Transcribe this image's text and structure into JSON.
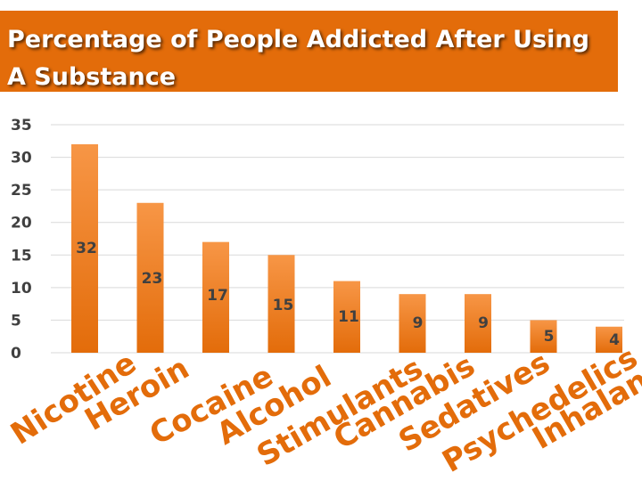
{
  "header": {
    "title": "Percentage of People Addicted After Using A Substance"
  },
  "colors": {
    "accent": "#e36c0a",
    "bar_top": "#f79646",
    "bar_bottom": "#e36c0a",
    "grid": "#d9d9d9",
    "text": "#404040"
  },
  "chart_data": {
    "type": "bar",
    "title": "Percentage of People Addicted After Using A Substance",
    "categories": [
      "Nicotine",
      "Heroin",
      "Cocaine",
      "Alcohol",
      "Stimulants",
      "Cannabis",
      "Sedatives",
      "Psychedelics",
      "Inhalants"
    ],
    "values": [
      32,
      23,
      17,
      15,
      11,
      9,
      9,
      5,
      4
    ],
    "data_labels": [
      "32",
      "23",
      "17",
      "15",
      "11",
      "9",
      "9",
      "5",
      "4"
    ],
    "yticks": [
      "0",
      "5",
      "10",
      "15",
      "20",
      "25",
      "30",
      "35"
    ],
    "ylim": [
      0,
      35
    ],
    "xlabel": "",
    "ylabel": "",
    "grid": true,
    "legend": "none"
  }
}
